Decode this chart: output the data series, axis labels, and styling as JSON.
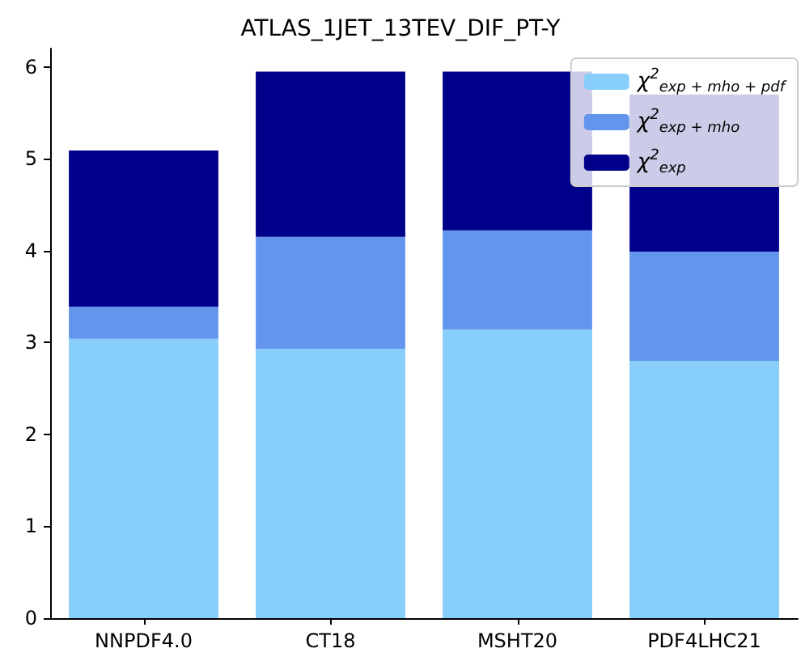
{
  "chart_data": {
    "type": "bar",
    "title": "ATLAS_1JET_13TEV_DIF_PT-Y",
    "stacked": true,
    "categories": [
      "NNPDF4.0",
      "CT18",
      "MSHT20",
      "PDF4LHC21"
    ],
    "series": [
      {
        "name": "χ$^{2}$$_{exp + mho + pdf}$",
        "color": "#87cefa",
        "values": [
          3.04,
          2.93,
          3.14,
          2.8
        ]
      },
      {
        "name": "χ$^{2}$$_{exp + mho}$",
        "color": "#6495ed",
        "values": [
          0.35,
          1.22,
          1.08,
          1.19
        ]
      },
      {
        "name": "χ$^{2}$$_{exp}$",
        "color": "#00008b",
        "values": [
          1.7,
          1.8,
          1.73,
          1.71
        ]
      }
    ],
    "ylim": [
      0,
      6.2
    ],
    "yticks": [
      0,
      1,
      2,
      3,
      4,
      5,
      6
    ],
    "grid": false,
    "legend": "top right"
  }
}
